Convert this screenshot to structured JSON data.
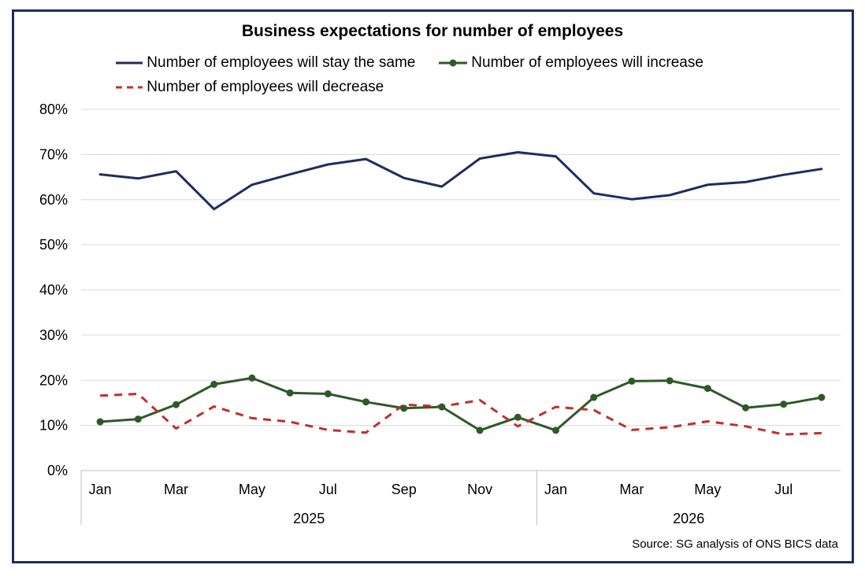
{
  "chart_data": {
    "type": "line",
    "title": "Business expectations for number of employees",
    "source": "Source: SG analysis of ONS BICS data",
    "x_tick_labels": [
      "Jan",
      "",
      "Mar",
      "",
      "May",
      "",
      "Jul",
      "",
      "Sep",
      "",
      "Nov",
      "",
      "Jan",
      "",
      "Mar",
      "",
      "May",
      "",
      "Jul",
      ""
    ],
    "year_groups": [
      {
        "label": "2025",
        "start_index": 0,
        "end_index": 11
      },
      {
        "label": "2026",
        "start_index": 12,
        "end_index": 19
      }
    ],
    "ylim": [
      0,
      80
    ],
    "y_ticks": [
      0,
      10,
      20,
      30,
      40,
      50,
      60,
      70,
      80
    ],
    "y_tick_labels": [
      "0%",
      "10%",
      "20%",
      "30%",
      "40%",
      "50%",
      "60%",
      "70%",
      "80%"
    ],
    "grid": "horizontal",
    "legend_position": "top",
    "series": [
      {
        "name": "Number of employees will stay the same",
        "color": "#1f2d5c",
        "style": "solid",
        "markers": false,
        "values": [
          65.6,
          64.7,
          66.3,
          57.9,
          63.3,
          65.6,
          67.8,
          69.0,
          64.8,
          62.9,
          69.1,
          70.5,
          69.6,
          61.4,
          60.1,
          61.0,
          63.3,
          63.9,
          65.5,
          66.8
        ]
      },
      {
        "name": "Number of employees will increase",
        "color": "#2d5a27",
        "style": "solid",
        "markers": true,
        "values": [
          10.8,
          11.4,
          14.6,
          19.1,
          20.5,
          17.2,
          17.0,
          15.2,
          13.8,
          14.1,
          8.9,
          11.8,
          8.9,
          16.2,
          19.8,
          19.9,
          18.2,
          13.9,
          14.7,
          16.2
        ]
      },
      {
        "name": "Number of employees will decrease",
        "color": "#c0302b",
        "style": "dashed",
        "markers": false,
        "values": [
          16.6,
          17.0,
          9.3,
          14.2,
          11.6,
          10.8,
          9.0,
          8.4,
          14.6,
          14.2,
          15.6,
          9.8,
          14.1,
          13.4,
          9.0,
          9.6,
          10.9,
          9.8,
          8.0,
          8.3
        ]
      }
    ]
  }
}
